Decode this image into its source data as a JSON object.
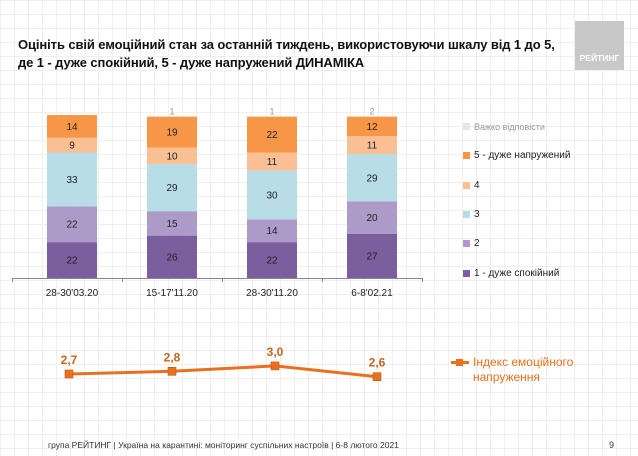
{
  "header": {
    "title": "Оцініть свій емоційний стан за останній тиждень, використовуючи шкалу від 1 до 5, де 1 - дуже спокійний, 5 - дуже напружений ДИНАМІКА",
    "logo_text": "РЕЙТИНГ"
  },
  "footer": {
    "text": "група РЕЙТИНГ | Україна на карантині: моніторинг суспільних настроїв | 6-8 лютого 2021",
    "page_number": "9"
  },
  "chart_data": [
    {
      "type": "bar",
      "stacked": true,
      "title": "Оцініть свій емоційний стан за останній тиждень, використовуючи шкалу від 1 до 5, де 1 - дуже спокійний, 5 - дуже напружений ДИНАМІКА",
      "categories": [
        "28-30'03.20",
        "15-17'11.20",
        "28-30'11.20",
        "6-8'02.21"
      ],
      "series": [
        {
          "name": "1 - дуже спокійний",
          "color": "#7b5e9e",
          "values": [
            22,
            26,
            22,
            27
          ]
        },
        {
          "name": "2",
          "color": "#ae9ac8",
          "values": [
            22,
            15,
            14,
            20
          ]
        },
        {
          "name": "3",
          "color": "#b8dde6",
          "values": [
            33,
            29,
            30,
            29
          ]
        },
        {
          "name": "4",
          "color": "#fbbf94",
          "values": [
            9,
            10,
            11,
            11
          ]
        },
        {
          "name": "5 - дуже напружений",
          "color": "#f79646",
          "values": [
            14,
            19,
            22,
            12
          ]
        },
        {
          "name": "Важко відповісти",
          "color": "#e6e6e6",
          "values": [
            0,
            1,
            1,
            2
          ]
        }
      ],
      "legend_order": [
        "Важко відповісти",
        "5 - дуже напружений",
        "4",
        "3",
        "2",
        "1 - дуже спокійний"
      ],
      "legend_position": "right",
      "unit": "%",
      "ylim": [
        0,
        100
      ],
      "grid": false
    },
    {
      "type": "line",
      "categories": [
        "28-30'03.20",
        "15-17'11.20",
        "28-30'11.20",
        "6-8'02.21"
      ],
      "series": [
        {
          "name": "Індекс емоційного напруження",
          "color": "#e8701f",
          "values": [
            2.7,
            2.8,
            3.0,
            2.6
          ]
        }
      ],
      "data_labels": [
        "2,7",
        "2,8",
        "3,0",
        "2,6"
      ],
      "legend_position": "right",
      "legend_lines": [
        "Індекс емоційного",
        "напруження"
      ]
    }
  ]
}
